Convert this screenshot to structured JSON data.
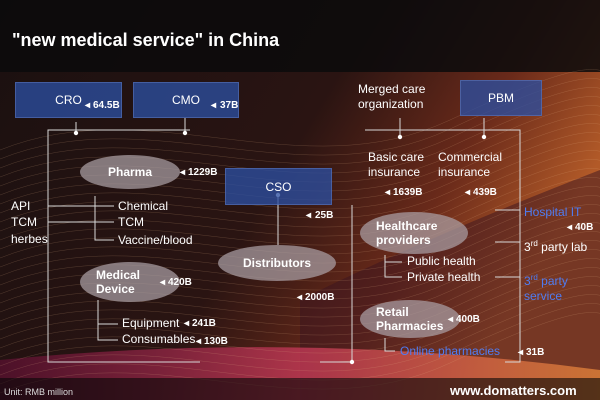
{
  "title": "\"new medical service\" in China",
  "boxes": {
    "cro": {
      "label": "CRO",
      "value": "64.5B"
    },
    "cmo": {
      "label": "CMO",
      "value": "37B"
    },
    "cso": {
      "label": "CSO",
      "value": "25B"
    },
    "pbm": {
      "label": "PBM"
    }
  },
  "merged_care": "Merged care organization",
  "insurance": {
    "basic_line1": "Basic care",
    "basic_line2": "insurance",
    "basic_value": "1639B",
    "commercial_line1": "Commercial",
    "commercial_line2": "insurance",
    "commercial_value": "439B"
  },
  "pharma": {
    "label": "Pharma",
    "value": "1229B"
  },
  "inputs": [
    "API",
    "TCM",
    "herbes"
  ],
  "pharma_items": [
    "Chemical",
    "TCM",
    "Vaccine/blood"
  ],
  "medical_device": {
    "label_line1": "Medical",
    "label_line2": "Device",
    "value": "420B"
  },
  "device_items": [
    {
      "label": "Equipment",
      "value": "241B"
    },
    {
      "label": "Consumables",
      "value": "130B"
    }
  ],
  "distributors": {
    "label": "Distributors",
    "value": "2000B"
  },
  "healthcare": {
    "label_line1": "Healthcare",
    "label_line2": "providers",
    "items": [
      "Public health",
      "Private health"
    ]
  },
  "retail": {
    "label_line1": "Retail",
    "label_line2": "Pharmacies",
    "value": "400B",
    "online": "Online pharmacies",
    "online_value": "31B"
  },
  "right_side": {
    "hospital_it": "Hospital IT",
    "hospital_it_value": "40B",
    "third_party_lab_prefix": "3",
    "third_party_lab_sup": "rd",
    "third_party_lab_suffix": " party lab",
    "third_party_service_prefix": "3",
    "third_party_service_sup": "rd",
    "third_party_service_suffix": " party",
    "third_party_service_line2": "service"
  },
  "footer": {
    "unit": "Unit: RMB million",
    "website": "www.domatters.com"
  },
  "colors": {
    "box_blue": "#2c4ea0",
    "link_blue": "#4f7cf2",
    "oval_gray": "#aaa0a5",
    "bg_warm": "#e07a35",
    "bg_pink": "#c03070"
  }
}
